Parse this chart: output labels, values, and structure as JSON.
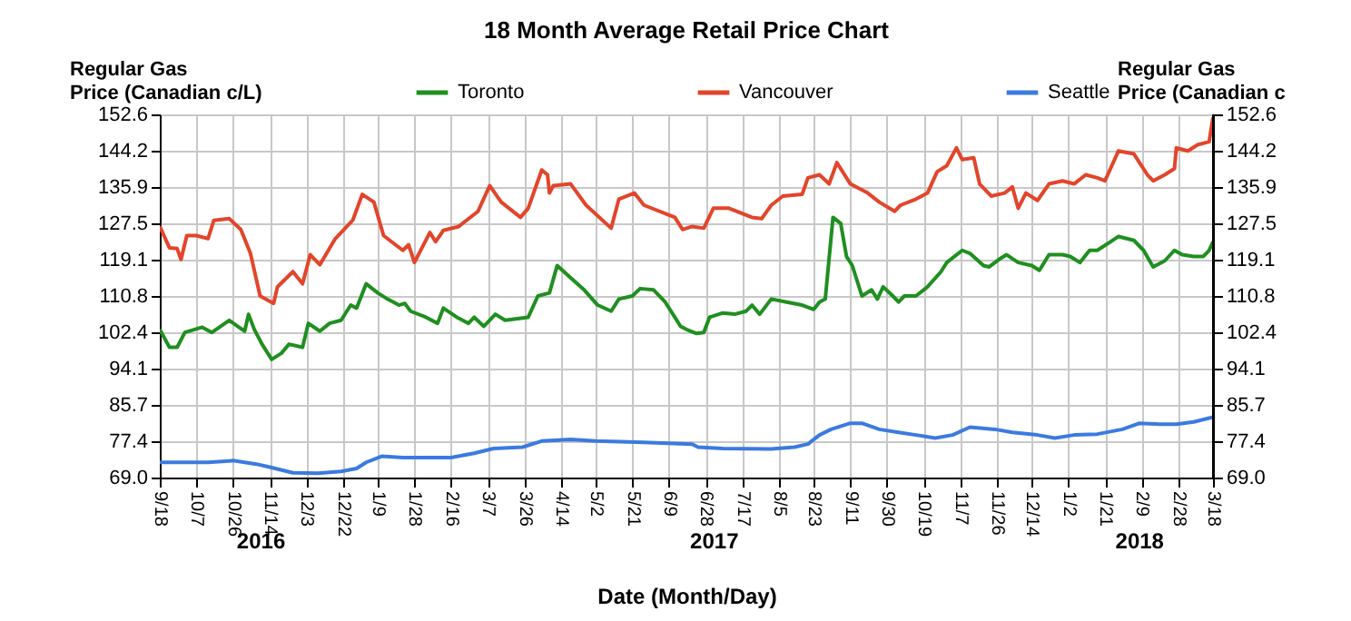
{
  "chart_data": {
    "type": "line",
    "title": "18 Month Average Retail Price Chart",
    "xlabel": "Date (Month/Day)",
    "ylabel": "Regular Gas Price (Canadian c/L)",
    "y2label": "Regular Gas Price (Canadian c",
    "xlim": [
      "2016-09-18",
      "2018-03-18"
    ],
    "xticks": [
      {
        "value": "2016-09-18",
        "label": "9/18"
      },
      {
        "value": "2016-10-07",
        "label": "10/7"
      },
      {
        "value": "2016-10-26",
        "label": "10/26"
      },
      {
        "value": "2016-11-14",
        "label": "11/14"
      },
      {
        "value": "2016-12-03",
        "label": "12/3"
      },
      {
        "value": "2016-12-22",
        "label": "12/22"
      },
      {
        "value": "2017-01-09",
        "label": "1/9"
      },
      {
        "value": "2017-01-28",
        "label": "1/28"
      },
      {
        "value": "2017-02-16",
        "label": "2/16"
      },
      {
        "value": "2017-03-07",
        "label": "3/7"
      },
      {
        "value": "2017-03-26",
        "label": "3/26"
      },
      {
        "value": "2017-04-14",
        "label": "4/14"
      },
      {
        "value": "2017-05-02",
        "label": "5/2"
      },
      {
        "value": "2017-05-21",
        "label": "5/21"
      },
      {
        "value": "2017-06-09",
        "label": "6/9"
      },
      {
        "value": "2017-06-28",
        "label": "6/28"
      },
      {
        "value": "2017-07-17",
        "label": "7/17"
      },
      {
        "value": "2017-08-05",
        "label": "8/5"
      },
      {
        "value": "2017-08-23",
        "label": "8/23"
      },
      {
        "value": "2017-09-11",
        "label": "9/11"
      },
      {
        "value": "2017-09-30",
        "label": "9/30"
      },
      {
        "value": "2017-10-19",
        "label": "10/19"
      },
      {
        "value": "2017-11-07",
        "label": "11/7"
      },
      {
        "value": "2017-11-26",
        "label": "11/26"
      },
      {
        "value": "2017-12-14",
        "label": "12/14"
      },
      {
        "value": "2018-01-02",
        "label": "1/2"
      },
      {
        "value": "2018-01-21",
        "label": "1/21"
      },
      {
        "value": "2018-02-09",
        "label": "2/9"
      },
      {
        "value": "2018-02-28",
        "label": "2/28"
      },
      {
        "value": "2018-03-18",
        "label": "3/18"
      }
    ],
    "ylim": [
      69.0,
      152.6
    ],
    "yticks": [
      {
        "value": 69.0,
        "label": "69.0"
      },
      77.4,
      85.7,
      94.1,
      102.4,
      110.8,
      119.1,
      127.5,
      135.9,
      144.2,
      152.6
    ],
    "y2lim": [
      69.0,
      152.6
    ],
    "y2ticks": [
      {
        "value": 69.0,
        "label": "69.0"
      },
      77.4,
      85.7,
      94.1,
      102.4,
      110.8,
      119.1,
      127.5,
      135.9,
      144.2,
      152.6
    ],
    "grid": true,
    "legend": "top",
    "line_style": "solid",
    "annotations": [
      "2016",
      "2017",
      "2018"
    ],
    "series": [
      {
        "name": "Toronto",
        "color": "#1f8f1f",
        "x": [
          "2016-09-18",
          "2016-09-23",
          "2016-09-27",
          "2016-10-01",
          "2016-10-10",
          "2016-10-15",
          "2016-10-24",
          "2016-10-29",
          "2016-11-01",
          "2016-11-03",
          "2016-11-06",
          "2016-11-10",
          "2016-11-15",
          "2016-11-20",
          "2016-11-24",
          "2016-12-01",
          "2016-12-04",
          "2016-12-10",
          "2016-12-15",
          "2016-12-21",
          "2016-12-26",
          "2016-12-29",
          "2017-01-03",
          "2017-01-09",
          "2017-01-14",
          "2017-01-20",
          "2017-01-23",
          "2017-01-26",
          "2017-02-03",
          "2017-02-09",
          "2017-02-12",
          "2017-02-19",
          "2017-02-25",
          "2017-02-28",
          "2017-03-05",
          "2017-03-11",
          "2017-03-16",
          "2017-03-28",
          "2017-04-02",
          "2017-04-08",
          "2017-04-12",
          "2017-04-19",
          "2017-04-26",
          "2017-05-03",
          "2017-05-10",
          "2017-05-14",
          "2017-05-21",
          "2017-05-25",
          "2017-06-01",
          "2017-06-07",
          "2017-06-12",
          "2017-06-15",
          "2017-06-18",
          "2017-06-23",
          "2017-06-27",
          "2017-06-30",
          "2017-07-07",
          "2017-07-13",
          "2017-07-19",
          "2017-07-22",
          "2017-07-26",
          "2017-08-01",
          "2017-08-09",
          "2017-08-17",
          "2017-08-23",
          "2017-08-26",
          "2017-08-29",
          "2017-09-02",
          "2017-09-06",
          "2017-09-09",
          "2017-09-12",
          "2017-09-17",
          "2017-09-22",
          "2017-09-25",
          "2017-09-28",
          "2017-10-03",
          "2017-10-06",
          "2017-10-09",
          "2017-10-15",
          "2017-10-21",
          "2017-10-28",
          "2017-10-31",
          "2017-11-08",
          "2017-11-12",
          "2017-11-19",
          "2017-11-22",
          "2017-11-27",
          "2017-12-01",
          "2017-12-07",
          "2017-12-14",
          "2017-12-18",
          "2017-12-23",
          "2017-12-30",
          "2018-01-03",
          "2018-01-08",
          "2018-01-13",
          "2018-01-17",
          "2018-01-24",
          "2018-01-28",
          "2018-02-05",
          "2018-02-10",
          "2018-02-15",
          "2018-02-21",
          "2018-02-26",
          "2018-03-02",
          "2018-03-08",
          "2018-03-13",
          "2018-03-16",
          "2018-03-18"
        ],
        "values": [
          103.1,
          99.0,
          99.0,
          102.4,
          103.6,
          102.4,
          105.2,
          103.6,
          102.7,
          106.6,
          103.1,
          99.7,
          96.2,
          97.6,
          99.7,
          99.0,
          104.5,
          102.7,
          104.5,
          105.2,
          108.7,
          108.0,
          113.6,
          111.5,
          110.1,
          108.7,
          109.1,
          107.3,
          105.9,
          104.5,
          108.0,
          105.9,
          104.5,
          105.9,
          103.8,
          106.6,
          105.2,
          105.9,
          110.8,
          111.5,
          117.8,
          115.0,
          112.2,
          108.7,
          107.3,
          110.1,
          110.8,
          112.5,
          112.2,
          109.4,
          105.9,
          103.8,
          103.1,
          102.2,
          102.4,
          105.9,
          106.9,
          106.6,
          107.3,
          108.7,
          106.6,
          110.1,
          109.4,
          108.7,
          107.7,
          109.4,
          110.1,
          128.9,
          127.5,
          119.9,
          117.8,
          110.8,
          112.2,
          110.1,
          112.9,
          110.8,
          109.4,
          110.8,
          110.8,
          112.9,
          116.4,
          118.5,
          121.3,
          120.6,
          117.8,
          117.5,
          119.2,
          120.3,
          118.5,
          117.8,
          116.7,
          120.3,
          120.3,
          119.9,
          118.5,
          121.3,
          121.3,
          123.3,
          124.5,
          123.6,
          121.3,
          117.5,
          118.9,
          121.3,
          120.3,
          119.9,
          119.9,
          121.3,
          123.3
        ]
      },
      {
        "name": "Vancouver",
        "color": "#e2452b",
        "x": [
          "2016-09-18",
          "2016-09-23",
          "2016-09-27",
          "2016-09-29",
          "2016-10-02",
          "2016-10-07",
          "2016-10-13",
          "2016-10-16",
          "2016-10-24",
          "2016-10-30",
          "2016-11-04",
          "2016-11-09",
          "2016-11-16",
          "2016-11-18",
          "2016-11-26",
          "2016-12-01",
          "2016-12-05",
          "2016-12-10",
          "2016-12-18",
          "2016-12-27",
          "2017-01-01",
          "2017-01-07",
          "2017-01-12",
          "2017-01-22",
          "2017-01-25",
          "2017-01-28",
          "2017-02-05",
          "2017-02-08",
          "2017-02-12",
          "2017-02-20",
          "2017-03-02",
          "2017-03-08",
          "2017-03-14",
          "2017-03-24",
          "2017-03-28",
          "2017-04-04",
          "2017-04-07",
          "2017-04-08",
          "2017-04-10",
          "2017-04-19",
          "2017-04-27",
          "2017-05-10",
          "2017-05-14",
          "2017-05-22",
          "2017-05-27",
          "2017-06-12",
          "2017-06-16",
          "2017-06-21",
          "2017-06-27",
          "2017-07-02",
          "2017-07-10",
          "2017-07-22",
          "2017-07-27",
          "2017-08-01",
          "2017-08-07",
          "2017-08-17",
          "2017-08-20",
          "2017-08-26",
          "2017-08-31",
          "2017-09-04",
          "2017-09-08",
          "2017-09-11",
          "2017-09-20",
          "2017-09-26",
          "2017-10-04",
          "2017-10-07",
          "2017-10-15",
          "2017-10-21",
          "2017-10-26",
          "2017-10-31",
          "2017-11-05",
          "2017-11-08",
          "2017-11-14",
          "2017-11-17",
          "2017-11-23",
          "2017-11-30",
          "2017-12-04",
          "2017-12-07",
          "2017-12-11",
          "2017-12-17",
          "2017-12-23",
          "2017-12-30",
          "2018-01-05",
          "2018-01-11",
          "2018-01-17",
          "2018-01-21",
          "2018-01-28",
          "2018-02-05",
          "2018-02-12",
          "2018-02-15",
          "2018-02-21",
          "2018-02-26",
          "2018-02-27",
          "2018-03-05",
          "2018-03-10",
          "2018-03-16",
          "2018-03-18"
        ],
        "values": [
          126.8,
          121.9,
          121.7,
          119.2,
          124.7,
          124.7,
          124.0,
          128.2,
          128.6,
          126.1,
          120.6,
          110.8,
          109.1,
          112.9,
          116.4,
          113.6,
          120.3,
          118.0,
          124.0,
          128.2,
          134.2,
          132.4,
          124.7,
          121.3,
          122.6,
          118.5,
          125.4,
          123.3,
          125.9,
          126.8,
          130.3,
          136.2,
          132.4,
          128.9,
          131.0,
          139.8,
          138.7,
          134.5,
          136.2,
          136.6,
          131.7,
          126.4,
          133.1,
          134.5,
          131.7,
          128.9,
          126.1,
          126.8,
          126.4,
          131.0,
          131.0,
          128.9,
          128.6,
          131.7,
          133.8,
          134.2,
          138.0,
          138.7,
          136.6,
          141.5,
          138.7,
          136.6,
          134.5,
          132.4,
          130.3,
          131.7,
          133.1,
          134.5,
          139.4,
          140.8,
          144.9,
          142.2,
          142.6,
          136.6,
          133.8,
          134.5,
          135.9,
          131.0,
          134.5,
          132.8,
          136.6,
          137.3,
          136.6,
          138.7,
          138.0,
          137.3,
          144.2,
          143.5,
          138.7,
          137.3,
          138.7,
          140.1,
          144.9,
          144.2,
          145.6,
          146.3,
          151.9
        ]
      },
      {
        "name": "Seattle",
        "color": "#3b7ae0",
        "x": [
          "2016-09-18",
          "2016-10-01",
          "2016-10-13",
          "2016-10-26",
          "2016-11-07",
          "2016-11-13",
          "2016-11-26",
          "2016-12-09",
          "2016-12-21",
          "2016-12-29",
          "2017-01-03",
          "2017-01-11",
          "2017-01-22",
          "2017-02-16",
          "2017-02-28",
          "2017-03-10",
          "2017-03-25",
          "2017-04-04",
          "2017-04-19",
          "2017-05-02",
          "2017-05-27",
          "2017-06-21",
          "2017-06-24",
          "2017-07-07",
          "2017-08-01",
          "2017-08-13",
          "2017-08-20",
          "2017-08-26",
          "2017-09-01",
          "2017-09-11",
          "2017-09-17",
          "2017-09-26",
          "2017-10-06",
          "2017-10-15",
          "2017-10-25",
          "2017-11-03",
          "2017-11-12",
          "2017-11-25",
          "2017-12-04",
          "2017-12-17",
          "2017-12-26",
          "2018-01-05",
          "2018-01-17",
          "2018-01-30",
          "2018-02-08",
          "2018-02-18",
          "2018-02-27",
          "2018-03-08",
          "2018-03-18"
        ],
        "values": [
          72.5,
          72.5,
          72.5,
          72.9,
          72.1,
          71.5,
          70.1,
          70.0,
          70.4,
          71.1,
          72.5,
          73.9,
          73.6,
          73.6,
          74.6,
          75.7,
          76.0,
          77.4,
          77.8,
          77.4,
          77.1,
          76.7,
          76.0,
          75.7,
          75.6,
          76.0,
          76.7,
          78.8,
          80.1,
          81.5,
          81.5,
          80.1,
          79.4,
          78.8,
          78.1,
          78.8,
          80.6,
          80.1,
          79.4,
          78.8,
          78.1,
          78.8,
          79.0,
          80.1,
          81.5,
          81.3,
          81.3,
          81.8,
          82.9
        ]
      }
    ]
  }
}
